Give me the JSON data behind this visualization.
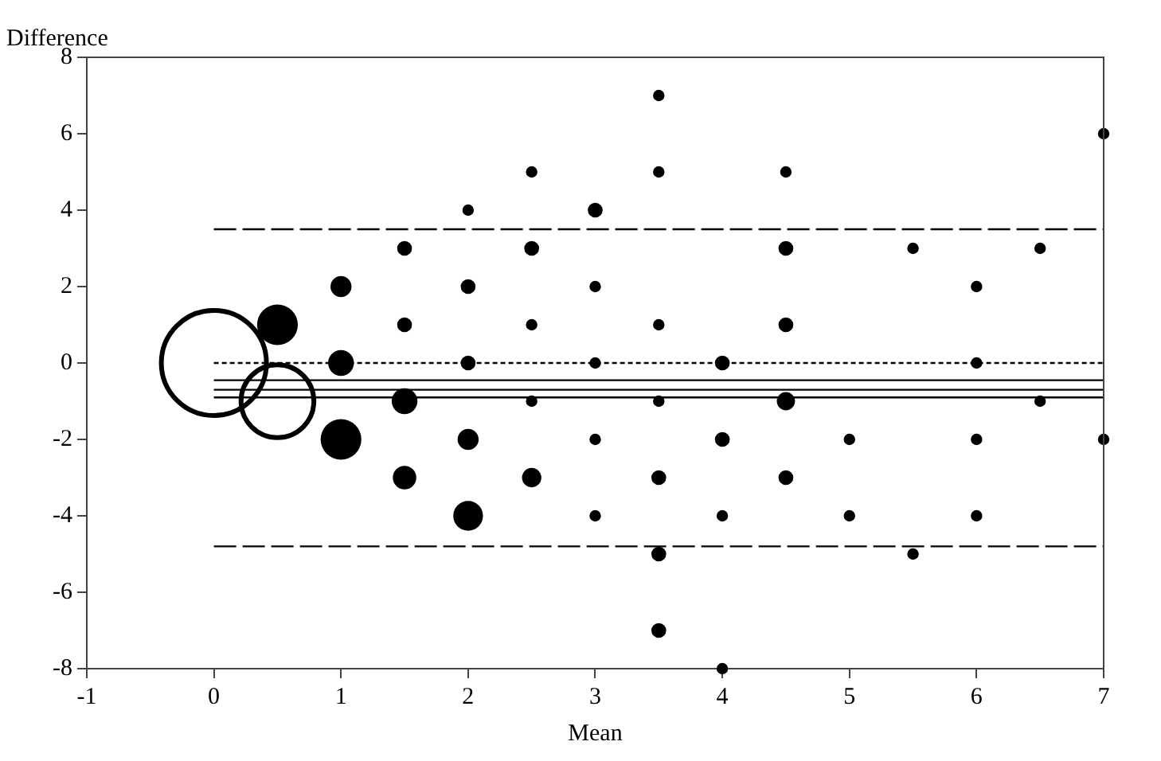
{
  "chart_data": {
    "type": "bubble",
    "xlabel": "Mean",
    "ylabel": "Difference",
    "xlim": [
      -1,
      7
    ],
    "xticks": [
      -1,
      0,
      1,
      2,
      3,
      4,
      5,
      6,
      7
    ],
    "ylim": [
      -8,
      8
    ],
    "yticks": [
      -8,
      -6,
      -4,
      -2,
      0,
      2,
      4,
      6,
      8
    ],
    "grid": false,
    "legend": false,
    "series": [
      {
        "color": "#000000",
        "x": [
          0,
          0.5,
          0.5,
          1,
          1,
          1,
          1.5,
          1.5,
          1.5,
          1.5,
          2,
          2,
          2,
          2,
          2,
          2.5,
          2.5,
          2.5,
          2.5,
          2.5,
          3,
          3,
          3,
          3,
          3,
          3.5,
          3.5,
          3.5,
          3.5,
          3.5,
          3.5,
          3.5,
          4,
          4,
          4,
          4,
          4.5,
          4.5,
          4.5,
          4.5,
          4.5,
          5,
          5,
          5.5,
          5.5,
          6,
          6,
          6,
          6,
          6.5,
          6.5,
          7,
          7
        ],
        "values": [
          0,
          1,
          -1,
          2,
          0,
          -2,
          3,
          1,
          -1,
          -3,
          4,
          2,
          0,
          -2,
          -4,
          5,
          3,
          1,
          -1,
          -3,
          4,
          2,
          0,
          -2,
          -4,
          7,
          5,
          1,
          -1,
          -3,
          -5,
          -7,
          0,
          -2,
          -4,
          -8,
          5,
          3,
          1,
          -1,
          -3,
          -2,
          -4,
          3,
          -5,
          2,
          0,
          -2,
          -4,
          3,
          -1,
          6,
          -2
        ],
        "sizes": [
          1,
          0.15,
          0.48,
          0.04,
          0.06,
          0.15,
          0.02,
          0.02,
          0.06,
          0.05,
          0.012,
          0.02,
          0.02,
          0.04,
          0.08,
          0.012,
          0.02,
          0.012,
          0.012,
          0.034,
          0.02,
          0.012,
          0.012,
          0.012,
          0.012,
          0.012,
          0.012,
          0.012,
          0.012,
          0.02,
          0.02,
          0.02,
          0.02,
          0.02,
          0.012,
          0.012,
          0.012,
          0.02,
          0.02,
          0.03,
          0.02,
          0.012,
          0.012,
          0.012,
          0.012,
          0.012,
          0.012,
          0.012,
          0.012,
          0.012,
          0.012,
          0.012,
          0.012
        ]
      },
      {
        "type": "line",
        "color": "#000000",
        "line_style": "dashed",
        "marker": "none",
        "x": [
          0,
          7
        ],
        "values": [
          3.5,
          3.5
        ]
      },
      {
        "type": "line",
        "color": "#000000",
        "line_style": "dashed",
        "marker": "none",
        "x": [
          0,
          7
        ],
        "values": [
          -4.8,
          -4.8
        ]
      },
      {
        "type": "line",
        "color": "#000000",
        "line_style": "dotted",
        "marker": "none",
        "x": [
          0,
          7
        ],
        "values": [
          0,
          0
        ]
      },
      {
        "type": "line",
        "color": "#000000",
        "line_style": "solid",
        "marker": "none",
        "x": [
          0,
          7
        ],
        "values": [
          -0.45,
          -0.45
        ]
      },
      {
        "type": "line",
        "color": "#000000",
        "line_style": "solid",
        "marker": "none",
        "x": [
          0,
          7
        ],
        "values": [
          -0.7,
          -0.7
        ]
      },
      {
        "type": "line",
        "color": "#000000",
        "line_style": "solid",
        "marker": "none",
        "x": [
          0,
          7
        ],
        "values": [
          -0.9,
          -0.9
        ]
      }
    ]
  }
}
